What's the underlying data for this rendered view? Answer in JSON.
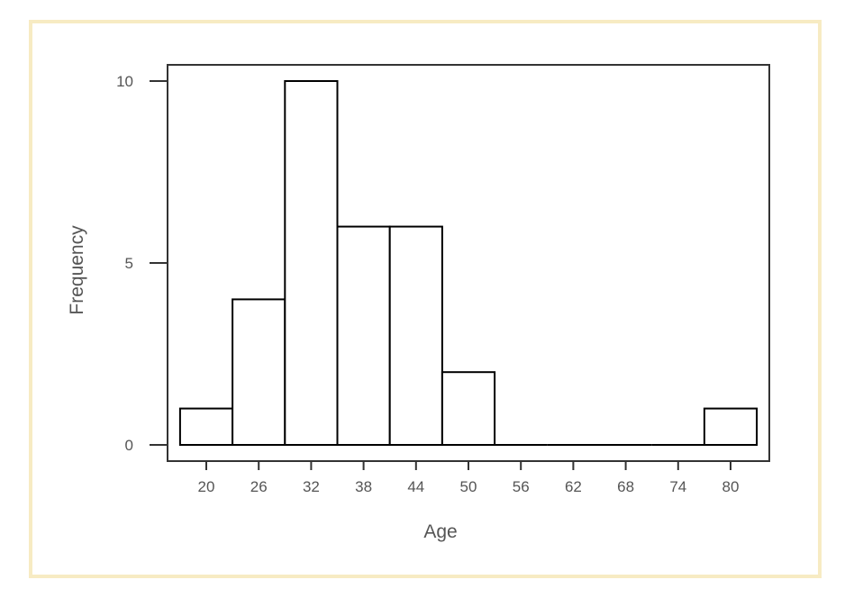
{
  "chart_data": {
    "type": "bar",
    "xlabel": "Age",
    "ylabel": "Frequency",
    "bin_width": 6,
    "bins": [
      {
        "center": 20,
        "count": 1
      },
      {
        "center": 26,
        "count": 4
      },
      {
        "center": 32,
        "count": 10
      },
      {
        "center": 38,
        "count": 6
      },
      {
        "center": 44,
        "count": 6
      },
      {
        "center": 50,
        "count": 2
      },
      {
        "center": 56,
        "count": 0
      },
      {
        "center": 62,
        "count": 0
      },
      {
        "center": 68,
        "count": 0
      },
      {
        "center": 74,
        "count": 0
      },
      {
        "center": 80,
        "count": 1
      }
    ],
    "x_ticks": [
      20,
      26,
      32,
      38,
      44,
      50,
      56,
      62,
      68,
      74,
      80
    ],
    "y_ticks": [
      0,
      5,
      10
    ],
    "xlim": [
      15.8,
      84.2
    ],
    "ylim": [
      -0.5,
      10.4
    ],
    "grid": false,
    "legend": "none",
    "colors": {
      "bar_fill": "#ffffff",
      "bar_stroke": "#000000",
      "frame_border": "#f7ebc3",
      "text": "#555555"
    }
  }
}
